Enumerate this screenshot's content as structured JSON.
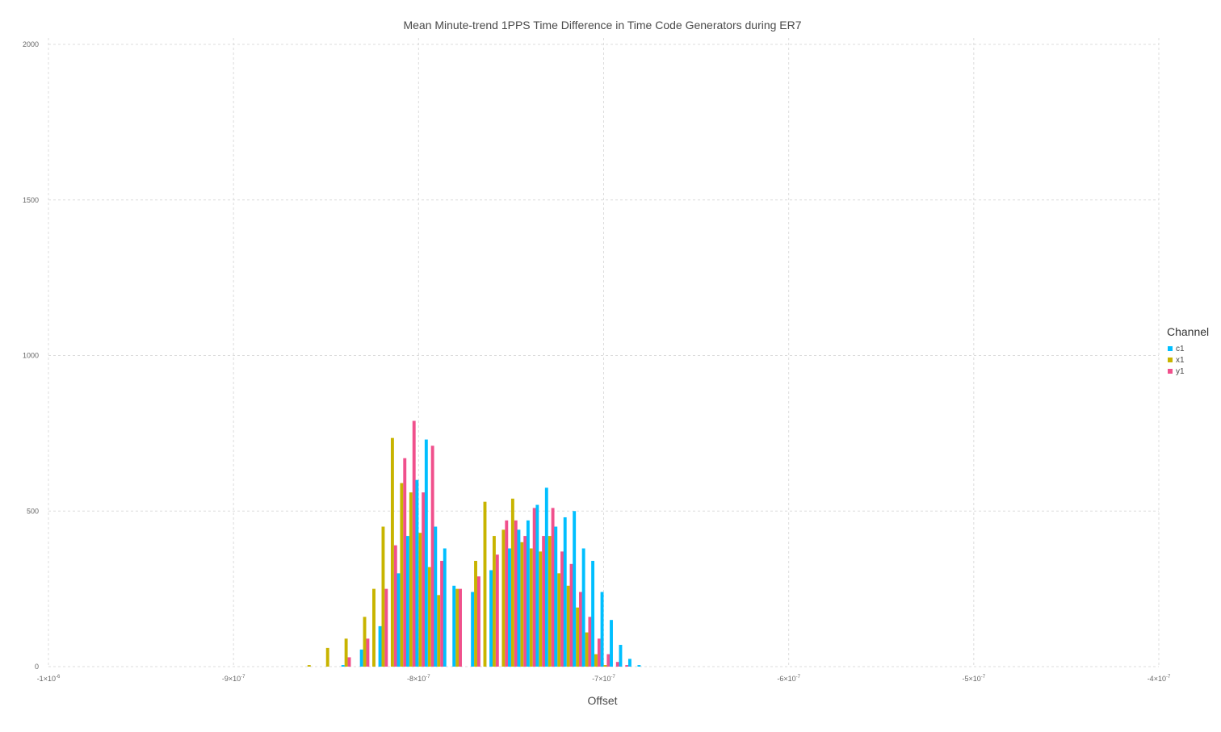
{
  "chart_data": {
    "type": "bar",
    "title": "Mean Minute-trend 1PPS Time Difference in Time Code Generators during ER7",
    "xlabel": "Offset",
    "ylabel": "",
    "xlim": [
      -1e-06,
      -4e-07
    ],
    "ylim": [
      0,
      2000
    ],
    "x_ticks": [
      -1e-06,
      -9e-07,
      -8e-07,
      -7e-07,
      -6e-07,
      -5e-07,
      -4e-07
    ],
    "x_tick_labels": [
      {
        "m": "-1",
        "e": "-6"
      },
      {
        "m": "-9",
        "e": "-7"
      },
      {
        "m": "-8",
        "e": "-7"
      },
      {
        "m": "-7",
        "e": "-7"
      },
      {
        "m": "-6",
        "e": "-7"
      },
      {
        "m": "-5",
        "e": "-7"
      },
      {
        "m": "-4",
        "e": "-7"
      }
    ],
    "y_ticks": [
      0,
      500,
      1000,
      1500,
      2000
    ],
    "y_tick_labels": [
      "0",
      "500",
      "1000",
      "1500",
      "2000"
    ],
    "grid": true,
    "legend": {
      "title": "Channel",
      "position": "right"
    },
    "bin_width": 1.7e-09,
    "series": [
      {
        "name": "c1",
        "color": "#00bfff",
        "x": [
          -8.4e-07,
          -8.3e-07,
          -8.2e-07,
          -8.1e-07,
          -8.05e-07,
          -8e-07,
          -7.95e-07,
          -7.9e-07,
          -7.85e-07,
          -7.8e-07,
          -7.7e-07,
          -7.6e-07,
          -7.5e-07,
          -7.45e-07,
          -7.4e-07,
          -7.35e-07,
          -7.3e-07,
          -7.25e-07,
          -7.2e-07,
          -7.15e-07,
          -7.1e-07,
          -7.05e-07,
          -7e-07,
          -6.95e-07,
          -6.9e-07,
          -6.85e-07,
          -6.8e-07
        ],
        "values": [
          5,
          55,
          130,
          300,
          420,
          600,
          730,
          450,
          380,
          260,
          240,
          310,
          380,
          440,
          470,
          520,
          575,
          450,
          480,
          500,
          380,
          340,
          240,
          150,
          70,
          25,
          5
        ]
      },
      {
        "name": "x1",
        "color": "#c8b400",
        "x": [
          -8.6e-07,
          -8.5e-07,
          -8.4e-07,
          -8.3e-07,
          -8.25e-07,
          -8.2e-07,
          -8.15e-07,
          -8.1e-07,
          -8.05e-07,
          -8e-07,
          -7.95e-07,
          -7.9e-07,
          -7.8e-07,
          -7.7e-07,
          -7.65e-07,
          -7.6e-07,
          -7.55e-07,
          -7.5e-07,
          -7.45e-07,
          -7.4e-07,
          -7.35e-07,
          -7.3e-07,
          -7.25e-07,
          -7.2e-07,
          -7.15e-07,
          -7.1e-07,
          -7.05e-07,
          -7e-07
        ],
        "values": [
          5,
          60,
          90,
          160,
          250,
          450,
          735,
          590,
          560,
          430,
          320,
          230,
          250,
          340,
          530,
          420,
          440,
          540,
          400,
          380,
          370,
          420,
          300,
          260,
          190,
          110,
          40,
          5
        ]
      },
      {
        "name": "y1",
        "color": "#f0508c",
        "x": [
          -8.4e-07,
          -8.3e-07,
          -8.2e-07,
          -8.15e-07,
          -8.1e-07,
          -8.05e-07,
          -8e-07,
          -7.95e-07,
          -7.9e-07,
          -7.8e-07,
          -7.7e-07,
          -7.6e-07,
          -7.55e-07,
          -7.5e-07,
          -7.45e-07,
          -7.4e-07,
          -7.35e-07,
          -7.3e-07,
          -7.25e-07,
          -7.2e-07,
          -7.15e-07,
          -7.1e-07,
          -7.05e-07,
          -7e-07,
          -6.95e-07,
          -6.9e-07
        ],
        "values": [
          30,
          90,
          250,
          390,
          670,
          790,
          560,
          710,
          340,
          250,
          290,
          360,
          470,
          470,
          420,
          510,
          420,
          510,
          370,
          330,
          240,
          160,
          90,
          40,
          15,
          5
        ]
      }
    ]
  }
}
